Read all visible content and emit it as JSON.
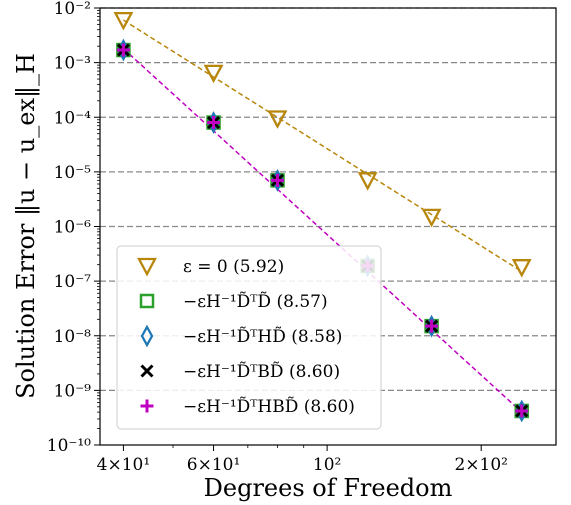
{
  "chart_data": {
    "type": "line",
    "xlabel": "Degrees of Freedom",
    "ylabel": "Solution Error ‖u − u_ex‖_H",
    "x_scale": "log",
    "y_scale": "log",
    "xlim": [
      36,
      280
    ],
    "ylim": [
      1e-10,
      0.01
    ],
    "grid": "y-major dashed",
    "legend_position": "lower-left",
    "x_ticks": [
      {
        "value": 40,
        "label": "4×10¹"
      },
      {
        "value": 60,
        "label": "6×10¹"
      },
      {
        "value": 100,
        "label": "10²"
      },
      {
        "value": 200,
        "label": "2×10²"
      }
    ],
    "y_ticks": [
      {
        "value": 0.01,
        "label": "10⁻²"
      },
      {
        "value": 0.001,
        "label": "10⁻³"
      },
      {
        "value": 0.0001,
        "label": "10⁻⁴"
      },
      {
        "value": 1e-05,
        "label": "10⁻⁵"
      },
      {
        "value": 1e-06,
        "label": "10⁻⁶"
      },
      {
        "value": 1e-07,
        "label": "10⁻⁷"
      },
      {
        "value": 1e-08,
        "label": "10⁻⁸"
      },
      {
        "value": 1e-09,
        "label": "10⁻⁹"
      },
      {
        "value": 1e-10,
        "label": "10⁻¹⁰"
      }
    ],
    "series": [
      {
        "name": "ε = 0 (5.92)",
        "marker": "triangle-down",
        "color": "#b8860b",
        "points": [
          [
            40,
            0.006
          ],
          [
            60,
            0.00065
          ],
          [
            80,
            9.5e-05
          ],
          [
            120,
            7e-06
          ],
          [
            160,
            1.5e-06
          ],
          [
            240,
            1.8e-07
          ]
        ],
        "fit": [
          [
            40,
            0.006
          ],
          [
            240,
            1.5e-07
          ]
        ]
      },
      {
        "name": "−εH⁻¹D̃ᵀD̃ (8.57)",
        "marker": "square",
        "color": "#2ca02c",
        "points": [
          [
            40,
            0.0017
          ],
          [
            60,
            8e-05
          ],
          [
            80,
            7e-06
          ],
          [
            120,
            1.9e-07
          ],
          [
            160,
            1.5e-08
          ],
          [
            240,
            4.2e-10
          ]
        ]
      },
      {
        "name": "−εH⁻¹D̃ᵀHD̃ (8.58)",
        "marker": "thin-diamond",
        "color": "#1f77b4",
        "points": [
          [
            40,
            0.0017
          ],
          [
            60,
            8e-05
          ],
          [
            80,
            7e-06
          ],
          [
            120,
            1.9e-07
          ],
          [
            160,
            1.5e-08
          ],
          [
            240,
            4.2e-10
          ]
        ]
      },
      {
        "name": "−εH⁻¹D̃ᵀBD̃ (8.60)",
        "marker": "x",
        "color": "#000000",
        "points": [
          [
            40,
            0.0017
          ],
          [
            60,
            8e-05
          ],
          [
            80,
            7e-06
          ],
          [
            120,
            1.9e-07
          ],
          [
            160,
            1.5e-08
          ],
          [
            240,
            4.2e-10
          ]
        ]
      },
      {
        "name": "−εH⁻¹D̃ᵀHBD̃ (8.60)",
        "marker": "plus",
        "color": "#c000c0",
        "points": [
          [
            40,
            0.0017
          ],
          [
            60,
            8e-05
          ],
          [
            80,
            7e-06
          ],
          [
            120,
            1.9e-07
          ],
          [
            160,
            1.5e-08
          ],
          [
            240,
            4.2e-10
          ]
        ],
        "fit": [
          [
            40,
            0.0018
          ],
          [
            240,
            4e-10
          ]
        ]
      }
    ]
  }
}
